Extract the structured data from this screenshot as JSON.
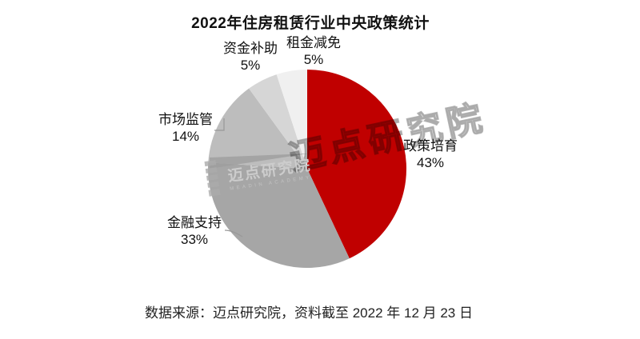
{
  "title": "2022年住房租赁行业中央政策统计",
  "source_note": "数据来源：迈点研究院，资料截至 2022 年 12 月 23 日",
  "watermark": {
    "text": "迈点研究院",
    "subtext": "MEADIN ACADEMY"
  },
  "chart_data": {
    "type": "pie",
    "title": "2022年住房租赁行业中央政策统计",
    "start_angle_deg": 0,
    "direction": "clockwise",
    "legend_position": "none",
    "slices": [
      {
        "label": "政策培育",
        "value": 43,
        "pct_label": "43%",
        "color": "#C00000"
      },
      {
        "label": "金融支持",
        "value": 33,
        "pct_label": "33%",
        "color": "#A6A6A6"
      },
      {
        "label": "市场监管",
        "value": 14,
        "pct_label": "14%",
        "color": "#BDBDBD"
      },
      {
        "label": "资金补助",
        "value": 5,
        "pct_label": "5%",
        "color": "#D6D6D6"
      },
      {
        "label": "租金减免",
        "value": 5,
        "pct_label": "5%",
        "color": "#F0F0F0"
      }
    ]
  }
}
